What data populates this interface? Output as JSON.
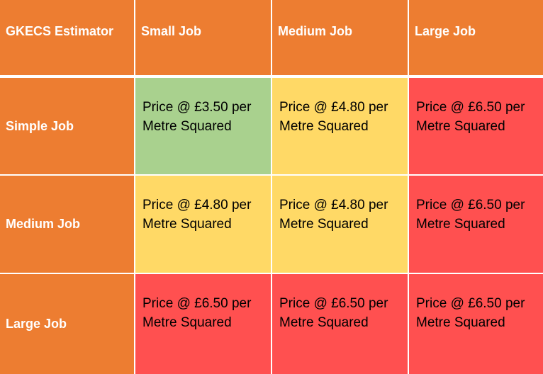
{
  "table": {
    "corner": "GKECS Estimator",
    "columns": [
      "Small Job",
      "Medium Job",
      "Large Job"
    ],
    "rows": [
      {
        "label": "Simple Job",
        "cells": [
          {
            "line1": "Price @ £3.50 per",
            "line2": "Metre Squared",
            "color": "#a9d18e"
          },
          {
            "line1": "Price @ £4.80 per",
            "line2": "Metre Squared",
            "color": "#ffd966"
          },
          {
            "line1": "Price @ £6.50 per",
            "line2": "Metre Squared",
            "color": "#ff5050"
          }
        ]
      },
      {
        "label": "Medium Job",
        "cells": [
          {
            "line1": "Price @ £4.80 per",
            "line2": "Metre Squared",
            "color": "#ffd966"
          },
          {
            "line1": "Price @ £4.80 per",
            "line2": "Metre Squared",
            "color": "#ffd966"
          },
          {
            "line1": "Price @ £6.50 per",
            "line2": "Metre Squared",
            "color": "#ff5050"
          }
        ]
      },
      {
        "label": "Large Job",
        "cells": [
          {
            "line1": "Price @ £6.50 per",
            "line2": "Metre Squared",
            "color": "#ff5050"
          },
          {
            "line1": "Price @ £6.50 per",
            "line2": "Metre Squared",
            "color": "#ff5050"
          },
          {
            "line1": "Price @ £6.50 per",
            "line2": "Metre Squared",
            "color": "#ff5050"
          }
        ]
      }
    ]
  },
  "colors": {
    "header": "#ed7d31",
    "low": "#a9d18e",
    "mid": "#ffd966",
    "high": "#ff5050"
  }
}
